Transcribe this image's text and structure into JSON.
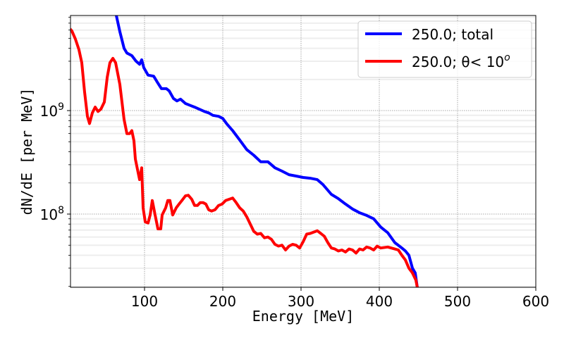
{
  "chart_data": {
    "type": "line",
    "title": "",
    "xlabel": "Energy [MeV]",
    "ylabel": "dN/dE [per MeV]",
    "xlim": [
      5.4,
      600
    ],
    "ylim": [
      19600000.0,
      8300000000.0
    ],
    "yscale": "log",
    "grid": "major dotted + minor y",
    "legend_position": "top-right",
    "x_ticks": [
      "100",
      "200",
      "300",
      "400",
      "500",
      "600"
    ],
    "x_tick_values": [
      100,
      200,
      300,
      400,
      500,
      600
    ],
    "y_ticks": [
      {
        "base": "10",
        "exp": "8",
        "value": 100000000.0
      },
      {
        "base": "10",
        "exp": "9",
        "value": 1000000000.0
      }
    ],
    "series": [
      {
        "name": "250.0; total",
        "label_main": "250.0; total",
        "color": "#0000ff",
        "x": [
          64,
          68.5,
          73.9,
          77.5,
          83.8,
          89.2,
          93.7,
          96.4,
          99.1,
          104.5,
          111.7,
          117.1,
          121.6,
          127.9,
          131.5,
          136.9,
          141.4,
          145.9,
          152.3,
          158.6,
          164,
          170.3,
          176.6,
          182,
          187.4,
          194.6,
          200,
          205.4,
          212.6,
          221.6,
          230.6,
          239.6,
          248.6,
          257.7,
          266.7,
          275.7,
          284.7,
          293.7,
          302.7,
          311.7,
          320.7,
          327.9,
          338.7,
          347.7,
          356.8,
          365.8,
          374.8,
          383.8,
          392.8,
          401.8,
          410.8,
          419.8,
          428.8,
          433.3,
          437.8,
          442.3,
          445.9,
          448.6
        ],
        "y": [
          8300000000.0,
          5800000000.0,
          4000000000.0,
          3600000000.0,
          3400000000.0,
          3000000000.0,
          2800000000.0,
          3100000000.0,
          2600000000.0,
          2200000000.0,
          2150000000.0,
          1840000000.0,
          1630000000.0,
          1630000000.0,
          1550000000.0,
          1310000000.0,
          1240000000.0,
          1290000000.0,
          1170000000.0,
          1120000000.0,
          1080000000.0,
          1030000000.0,
          980000000.0,
          950000000.0,
          900000000.0,
          880000000.0,
          840000000.0,
          740000000.0,
          640000000.0,
          520000000.0,
          420000000.0,
          370000000.0,
          320000000.0,
          320000000.0,
          280000000.0,
          260000000.0,
          240000000.0,
          233000000.0,
          226000000.0,
          222000000.0,
          215000000.0,
          193000000.0,
          155000000.0,
          141000000.0,
          125000000.0,
          112000000.0,
          103000000.0,
          97000000.0,
          90000000.0,
          75000000.0,
          66000000.0,
          53000000.0,
          47000000.0,
          44000000.0,
          40000000.0,
          30000000.0,
          27000000.0,
          19600000.0
        ]
      },
      {
        "name": "250.0; θ< 10^o",
        "label_main": "250.0; θ< 10",
        "label_sup": "o",
        "color": "#ff0000",
        "x": [
          5.4,
          7.1,
          11.7,
          16.1,
          19.8,
          23.3,
          27,
          29.7,
          33.3,
          36.9,
          40.5,
          44.1,
          48.6,
          52.3,
          55.8,
          59.5,
          63.1,
          68.5,
          73.9,
          77.5,
          81.1,
          83.8,
          86.5,
          88.3,
          91.9,
          93.7,
          96.4,
          98.2,
          100.9,
          104.5,
          107.2,
          109.9,
          113.5,
          117.1,
          120.7,
          122.5,
          127,
          129.7,
          132.4,
          136,
          140.5,
          144.1,
          147.7,
          152.3,
          155.9,
          160.4,
          164,
          167.6,
          171.2,
          174.8,
          178.4,
          182,
          185.6,
          190.1,
          194.6,
          199.1,
          203.6,
          208.1,
          212.6,
          217.1,
          221.6,
          226.1,
          230.6,
          235.1,
          239.6,
          244.1,
          248.6,
          253.2,
          257.7,
          262.2,
          266.7,
          271.2,
          275.7,
          280.2,
          284.7,
          289.2,
          293.7,
          298.2,
          302.7,
          307.2,
          311.7,
          316.2,
          320.7,
          325.2,
          329.7,
          334.2,
          338.7,
          343.2,
          347.7,
          352.2,
          356.8,
          361.3,
          365.8,
          370.3,
          374.8,
          379.3,
          383.8,
          388.3,
          392.8,
          397.3,
          401.8,
          410.8,
          419.8,
          424.3,
          428.8,
          433.3,
          437.8,
          442.3,
          446.8,
          448.6
        ],
        "y": [
          6100000000.0,
          5900000000.0,
          4900000000.0,
          3900000000.0,
          2900000000.0,
          1530000000.0,
          880000000.0,
          750000000.0,
          950000000.0,
          1080000000.0,
          980000000.0,
          1030000000.0,
          1210000000.0,
          2100000000.0,
          2900000000.0,
          3200000000.0,
          2900000000.0,
          1790000000.0,
          820000000.0,
          600000000.0,
          600000000.0,
          640000000.0,
          510000000.0,
          340000000.0,
          250000000.0,
          215000000.0,
          280000000.0,
          115000000.0,
          84000000.0,
          82000000.0,
          98000000.0,
          135000000.0,
          98000000.0,
          72000000.0,
          72000000.0,
          98000000.0,
          115000000.0,
          135000000.0,
          135000000.0,
          98000000.0,
          115000000.0,
          125000000.0,
          135000000.0,
          150000000.0,
          152000000.0,
          139000000.0,
          121000000.0,
          121000000.0,
          129000000.0,
          129000000.0,
          125000000.0,
          110000000.0,
          107000000.0,
          110000000.0,
          121000000.0,
          125000000.0,
          135000000.0,
          139000000.0,
          143000000.0,
          129000000.0,
          115000000.0,
          107000000.0,
          94000000.0,
          80000000.0,
          68000000.0,
          64000000.0,
          65000000.0,
          59000000.0,
          60000000.0,
          57000000.0,
          51000000.0,
          49000000.0,
          50000000.0,
          45000000.0,
          49000000.0,
          51000000.0,
          50000000.0,
          47000000.0,
          54000000.0,
          64000000.0,
          65000000.0,
          67000000.0,
          69000000.0,
          65000000.0,
          61000000.0,
          53000000.0,
          47000000.0,
          46000000.0,
          44000000.0,
          45000000.0,
          43000000.0,
          46000000.0,
          45000000.0,
          42000000.0,
          46000000.0,
          45000000.0,
          48000000.0,
          47000000.0,
          45000000.0,
          49000000.0,
          47000000.0,
          48000000.0,
          46000000.0,
          45000000.0,
          40000000.0,
          36000000.0,
          30000000.0,
          27000000.0,
          23000000.0,
          19600000.0
        ]
      }
    ]
  }
}
